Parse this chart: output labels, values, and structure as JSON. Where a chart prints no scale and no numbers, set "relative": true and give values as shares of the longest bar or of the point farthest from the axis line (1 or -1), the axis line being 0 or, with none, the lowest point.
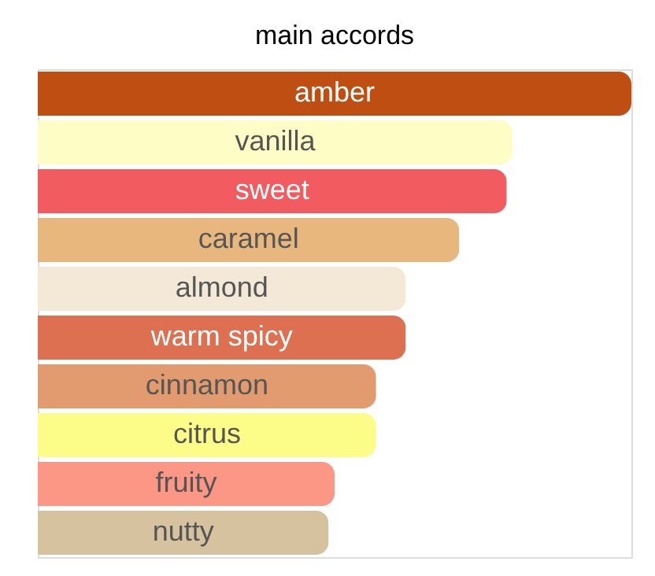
{
  "chart_data": {
    "type": "bar",
    "orientation": "horizontal",
    "relative": true,
    "title": "main accords",
    "categories": [
      "amber",
      "vanilla",
      "sweet",
      "caramel",
      "almond",
      "warm spicy",
      "cinnamon",
      "citrus",
      "fruity",
      "nutty"
    ],
    "values": [
      1,
      0.8,
      0.79,
      0.71,
      0.62,
      0.62,
      0.57,
      0.57,
      0.5,
      0.49
    ],
    "colors": [
      "#bf4e13",
      "#fffdc6",
      "#f25c61",
      "#e8b77d",
      "#f3e9d6",
      "#dd7051",
      "#e29b6f",
      "#fcfd88",
      "#fc9685",
      "#d7c29f"
    ],
    "data_labels": false
  }
}
